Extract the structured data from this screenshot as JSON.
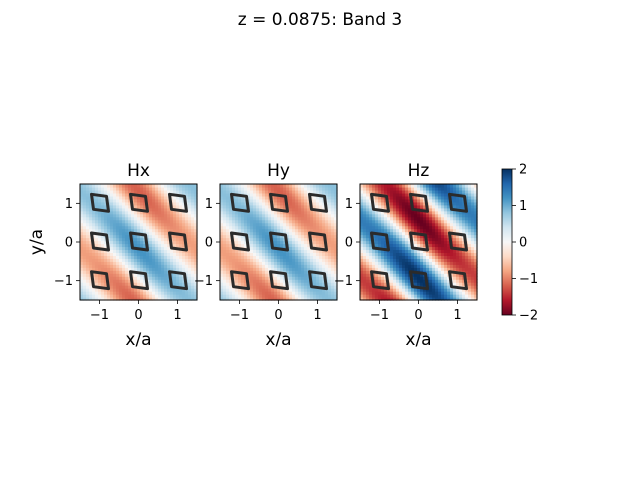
{
  "title": "z = 0.0875: Band 3",
  "chart_data": {
    "type": "heatmap",
    "colormap": "RdBu",
    "panels": [
      {
        "title": "Hx",
        "xlabel": "x/a",
        "ylabel": "y/a",
        "xlim": [
          -1.5,
          1.5
        ],
        "ylim": [
          -1.5,
          1.5
        ],
        "xticks": [
          "−1",
          "0",
          "1"
        ],
        "yticks": [
          "−1",
          "0",
          "1"
        ],
        "field": {
          "kx": 2.094,
          "ky": 2.094,
          "phase": 0.35,
          "amplitude": 1.2
        }
      },
      {
        "title": "Hy",
        "xlabel": "x/a",
        "ylabel": "",
        "xlim": [
          -1.5,
          1.5
        ],
        "ylim": [
          -1.5,
          1.5
        ],
        "xticks": [
          "−1",
          "0",
          "1"
        ],
        "yticks": [
          "−1",
          "0",
          "1"
        ],
        "field": {
          "kx": 2.094,
          "ky": 2.094,
          "phase": 0.35,
          "amplitude": 1.2
        }
      },
      {
        "title": "Hz",
        "xlabel": "x/a",
        "ylabel": "",
        "xlim": [
          -1.5,
          1.5
        ],
        "ylim": [
          -1.5,
          1.5
        ],
        "xticks": [
          "−1",
          "0",
          "1"
        ],
        "yticks": [
          "−1",
          "0",
          "1"
        ],
        "field": {
          "kx": 2.094,
          "ky": 2.094,
          "phase": 1.9,
          "amplitude": 2.0
        }
      }
    ],
    "holes": {
      "centers_x": [
        -1,
        0,
        1
      ],
      "centers_y": [
        -1,
        0,
        1
      ],
      "shape": "rhombus",
      "color": "#2b2b2b"
    },
    "colorbar": {
      "min": -2,
      "max": 2,
      "ticks": [
        2,
        1,
        0,
        -1,
        -2
      ],
      "tick_labels": [
        "2",
        "1",
        "0",
        "−1",
        "−2"
      ]
    },
    "grid": false
  }
}
